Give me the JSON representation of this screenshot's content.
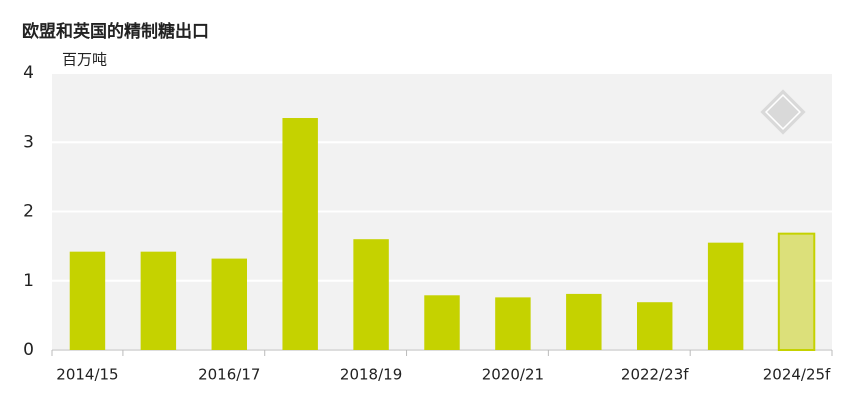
{
  "chart_data": {
    "type": "bar",
    "title": "欧盟和英国的精制糖出口",
    "y_label": "百万吨",
    "categories": [
      "2014/15",
      null,
      "2016/17",
      null,
      "2018/19",
      null,
      "2020/21",
      null,
      "2022/23f",
      null,
      "2024/25f"
    ],
    "values": [
      1.42,
      1.42,
      1.32,
      3.35,
      1.6,
      0.79,
      0.76,
      0.81,
      0.69,
      1.55,
      1.68
    ],
    "color": "#c5d200",
    "colors": [
      "#c5d200",
      "#c5d200",
      "#c5d200",
      "#c5d200",
      "#c5d200",
      "#c5d200",
      "#c5d200",
      "#c5d200",
      "#c5d200",
      "#c5d200",
      "#dce07a"
    ],
    "ylim": [
      0,
      4
    ],
    "yticks": [
      0,
      1,
      2,
      3,
      4
    ],
    "grid": true
  }
}
